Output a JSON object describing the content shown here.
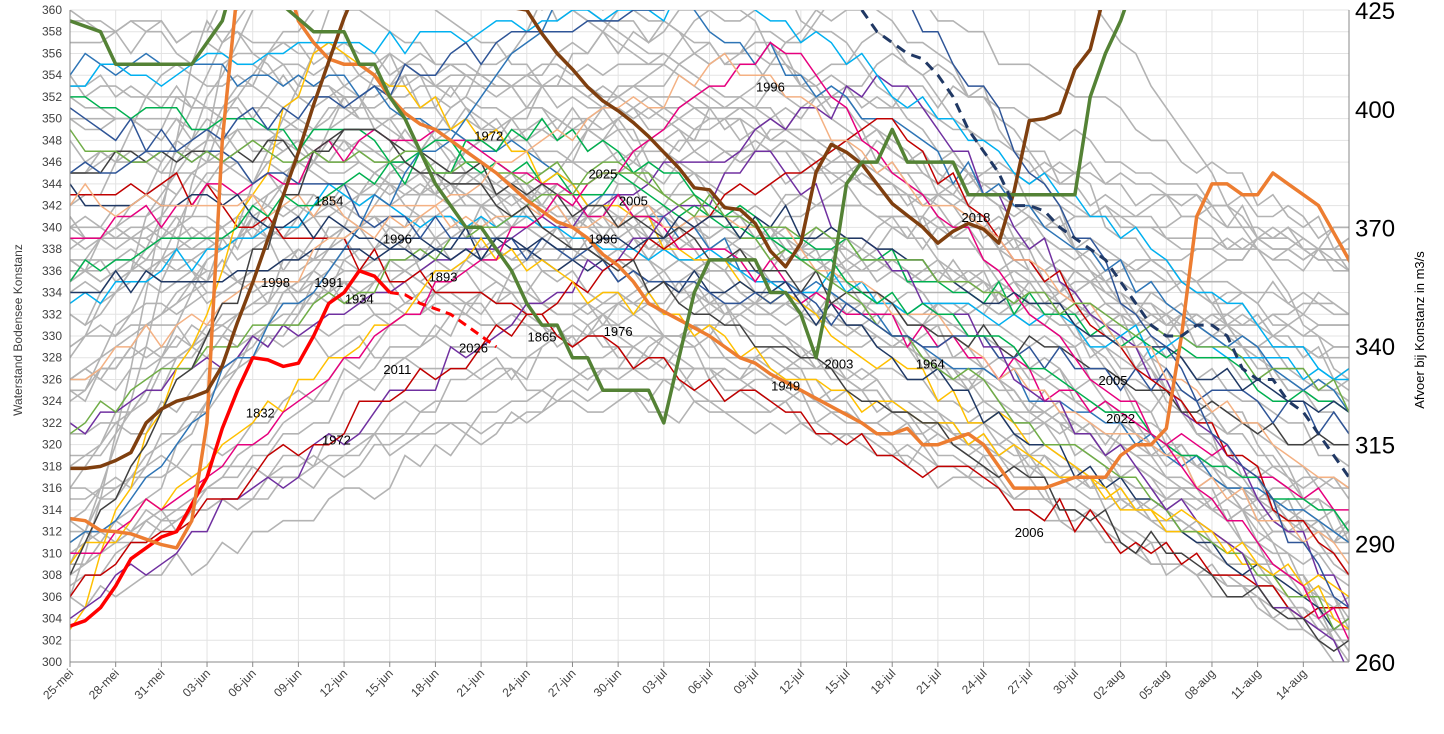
{
  "chart_data": {
    "type": "line",
    "title": "",
    "ylabel": "Waterstand Bodensee Konstanz",
    "y2label": "Afvoer bij Konstanz in m3/s",
    "ylim": [
      300,
      360
    ],
    "y2lim": [
      260,
      425
    ],
    "y_ticks": [
      300,
      302,
      304,
      306,
      308,
      310,
      312,
      314,
      316,
      318,
      320,
      322,
      324,
      326,
      328,
      330,
      332,
      334,
      336,
      338,
      340,
      342,
      344,
      346,
      348,
      350,
      352,
      354,
      356,
      358,
      360
    ],
    "y2_ticks": [
      260,
      290,
      315,
      340,
      370,
      400,
      425
    ],
    "x_range": [
      "25-mei",
      "16-aug"
    ],
    "x_ticks": [
      "25-mei",
      "28-mei",
      "31-mei",
      "03-jun",
      "06-jun",
      "09-jun",
      "12-jun",
      "15-jun",
      "18-jun",
      "21-jun",
      "24-jun",
      "27-jun",
      "30-jun",
      "03-jul",
      "06-jul",
      "09-jul",
      "12-jul",
      "15-jul",
      "18-jul",
      "21-jul",
      "24-jul",
      "27-jul",
      "30-jul",
      "02-aug",
      "05-aug",
      "08-aug",
      "11-aug",
      "14-aug"
    ],
    "grid": true,
    "background_series_color": "#b3b3b3",
    "series": [
      {
        "name": "2026",
        "color": "#ff0000",
        "width": 3.5,
        "values": [
          [
            0,
            303.3
          ],
          [
            1,
            303.8
          ],
          [
            2,
            305
          ],
          [
            3,
            307
          ],
          [
            4,
            309.5
          ],
          [
            5,
            310.5
          ],
          [
            6,
            311.5
          ],
          [
            7,
            312
          ],
          [
            8,
            314.5
          ],
          [
            9,
            317
          ],
          [
            10,
            321.5
          ],
          [
            11,
            325
          ],
          [
            12,
            328
          ],
          [
            13,
            327.8
          ],
          [
            14,
            327.2
          ],
          [
            15,
            327.5
          ],
          [
            16,
            330
          ],
          [
            17,
            333
          ],
          [
            18,
            334
          ],
          [
            19,
            336
          ],
          [
            20,
            335.5
          ],
          [
            21,
            334
          ]
        ]
      },
      {
        "name": "2026",
        "color": "#ff0000",
        "width": 3,
        "dash": "9 6",
        "values": [
          [
            21,
            334
          ],
          [
            22,
            333.8
          ],
          [
            23,
            333
          ],
          [
            24,
            332.5
          ],
          [
            25,
            332
          ],
          [
            26,
            331
          ],
          [
            27,
            330
          ],
          [
            28,
            329
          ]
        ]
      },
      {
        "name": "1976",
        "color": "#ed7d31",
        "width": 3.5,
        "values": [
          [
            0,
            313.2
          ],
          [
            1,
            313
          ],
          [
            2,
            312.1
          ],
          [
            3,
            312
          ],
          [
            4,
            311.8
          ],
          [
            6,
            310.8
          ],
          [
            7,
            310.5
          ],
          [
            8,
            313
          ],
          [
            9,
            322
          ],
          [
            10,
            348
          ],
          [
            11,
            362
          ],
          [
            13,
            366
          ],
          [
            14,
            364
          ],
          [
            15,
            359
          ],
          [
            16,
            357
          ],
          [
            17,
            355.5
          ],
          [
            18,
            355
          ],
          [
            19,
            355
          ],
          [
            20,
            354
          ],
          [
            21,
            352
          ],
          [
            22,
            350.5
          ],
          [
            23,
            349.5
          ],
          [
            24,
            349
          ],
          [
            25,
            348
          ],
          [
            26,
            347
          ],
          [
            28,
            345
          ],
          [
            30,
            342.5
          ],
          [
            31,
            341.5
          ],
          [
            32,
            340.5
          ],
          [
            33,
            340
          ],
          [
            34,
            339
          ],
          [
            35,
            337.5
          ],
          [
            36,
            336.5
          ],
          [
            37,
            335
          ],
          [
            38,
            333
          ],
          [
            40,
            331.5
          ],
          [
            42,
            330
          ],
          [
            44,
            328
          ],
          [
            45,
            327.5
          ],
          [
            46,
            326.5
          ],
          [
            48,
            325
          ],
          [
            50,
            323.5
          ],
          [
            52,
            322
          ],
          [
            53,
            321
          ],
          [
            54,
            321
          ],
          [
            55,
            321.5
          ],
          [
            56,
            320
          ],
          [
            57,
            320
          ],
          [
            58,
            320.5
          ],
          [
            59,
            321
          ],
          [
            60,
            320
          ],
          [
            61,
            318
          ],
          [
            62,
            316
          ],
          [
            63,
            316
          ],
          [
            64,
            316
          ],
          [
            65,
            316.5
          ],
          [
            66,
            317
          ],
          [
            67,
            317
          ],
          [
            68,
            317
          ],
          [
            69,
            319
          ],
          [
            70,
            320
          ],
          [
            71,
            320
          ],
          [
            72,
            321.5
          ],
          [
            73,
            330
          ],
          [
            74,
            341
          ],
          [
            75,
            344
          ],
          [
            76,
            344
          ],
          [
            77,
            343
          ],
          [
            78,
            343
          ],
          [
            79,
            345
          ],
          [
            80,
            344
          ],
          [
            81,
            343
          ],
          [
            82,
            342
          ],
          [
            83,
            339.5
          ],
          [
            84,
            337
          ],
          [
            85,
            334
          ],
          [
            86,
            331.5
          ],
          [
            87,
            329.5
          ],
          [
            88,
            327.5
          ],
          [
            89,
            326.5
          ],
          [
            90,
            325.5
          ],
          [
            91,
            323.5
          ],
          [
            92,
            321.5
          ]
        ]
      },
      {
        "name": "2025",
        "color": "#7f3f0f",
        "width": 3.5,
        "y_axis": "right",
        "values": [
          [
            0,
            309
          ],
          [
            1,
            309
          ],
          [
            2,
            309.5
          ],
          [
            3,
            311
          ],
          [
            4,
            313
          ],
          [
            5,
            320.5
          ],
          [
            6,
            324
          ],
          [
            7,
            326
          ],
          [
            8,
            327
          ],
          [
            9,
            328.5
          ],
          [
            10,
            335
          ],
          [
            11,
            346
          ],
          [
            12,
            356
          ],
          [
            13,
            367
          ],
          [
            14,
            378
          ],
          [
            15,
            389
          ],
          [
            16,
            401
          ],
          [
            17,
            412
          ],
          [
            18,
            423
          ],
          [
            19,
            432
          ],
          [
            30,
            425
          ],
          [
            31,
            419
          ],
          [
            32,
            414
          ],
          [
            33,
            410
          ],
          [
            34,
            405.5
          ],
          [
            35,
            402
          ],
          [
            36,
            399.5
          ],
          [
            37,
            396.5
          ],
          [
            38,
            393
          ],
          [
            39,
            389
          ],
          [
            40,
            385
          ],
          [
            41,
            380
          ],
          [
            42,
            379.5
          ],
          [
            43,
            375
          ],
          [
            44,
            374.5
          ],
          [
            45,
            371
          ],
          [
            46,
            364
          ],
          [
            47,
            360
          ],
          [
            48,
            366
          ],
          [
            49,
            384
          ],
          [
            50,
            391
          ],
          [
            51,
            389
          ],
          [
            52,
            386
          ],
          [
            53,
            381
          ],
          [
            54,
            376
          ],
          [
            55,
            373
          ],
          [
            56,
            370
          ],
          [
            57,
            366
          ],
          [
            58,
            369
          ],
          [
            59,
            371
          ],
          [
            60,
            369.5
          ],
          [
            61,
            366
          ],
          [
            62,
            379
          ],
          [
            63,
            397
          ],
          [
            64,
            397.5
          ],
          [
            65,
            399
          ],
          [
            66,
            410
          ],
          [
            67,
            415
          ],
          [
            68,
            430
          ]
        ]
      },
      {
        "name": "1865",
        "color": "#548235",
        "width": 3.5,
        "values": [
          [
            0,
            359
          ],
          [
            2,
            358
          ],
          [
            3,
            355
          ],
          [
            6,
            355
          ],
          [
            8,
            355
          ],
          [
            10,
            359
          ],
          [
            11,
            364
          ],
          [
            16,
            358
          ],
          [
            18,
            358
          ],
          [
            19,
            355
          ],
          [
            20,
            355
          ],
          [
            21,
            352
          ],
          [
            22,
            350
          ],
          [
            23,
            347
          ],
          [
            24,
            344
          ],
          [
            25,
            342
          ],
          [
            26,
            340
          ],
          [
            27,
            340
          ],
          [
            28,
            338
          ],
          [
            29,
            336
          ],
          [
            30,
            333
          ],
          [
            31,
            331
          ],
          [
            32,
            331
          ],
          [
            33,
            328
          ],
          [
            34,
            328
          ],
          [
            35,
            325
          ],
          [
            37,
            325
          ],
          [
            38,
            325
          ],
          [
            39,
            322
          ],
          [
            40,
            328
          ],
          [
            41,
            334
          ],
          [
            42,
            337
          ],
          [
            44,
            337
          ],
          [
            45,
            337
          ],
          [
            46,
            334
          ],
          [
            47,
            334
          ],
          [
            48,
            332
          ],
          [
            49,
            328
          ],
          [
            50,
            335
          ],
          [
            51,
            344
          ],
          [
            52,
            346
          ],
          [
            53,
            346
          ],
          [
            54,
            349
          ],
          [
            55,
            346
          ],
          [
            57,
            346
          ],
          [
            58,
            346
          ],
          [
            59,
            343
          ],
          [
            63,
            343
          ],
          [
            64,
            343
          ],
          [
            65,
            343
          ],
          [
            66,
            343
          ],
          [
            67,
            352
          ],
          [
            68,
            356
          ],
          [
            69,
            359
          ],
          [
            70,
            363
          ]
        ]
      },
      {
        "name": "2018",
        "color": "#203864",
        "width": 3,
        "dash": "10 7",
        "values": [
          [
            52,
            360
          ],
          [
            53,
            358
          ],
          [
            54,
            357
          ],
          [
            55,
            356
          ],
          [
            56,
            355.5
          ],
          [
            57,
            354
          ],
          [
            58,
            352
          ],
          [
            59,
            349
          ],
          [
            60,
            347
          ],
          [
            61,
            345
          ],
          [
            62,
            342
          ],
          [
            63,
            342
          ],
          [
            64,
            341.5
          ],
          [
            65,
            340
          ],
          [
            66,
            339
          ],
          [
            67,
            338
          ],
          [
            68,
            337
          ],
          [
            69,
            335
          ],
          [
            70,
            333
          ],
          [
            71,
            331
          ],
          [
            72,
            330
          ],
          [
            73,
            330
          ],
          [
            74,
            331
          ],
          [
            75,
            331
          ],
          [
            76,
            330
          ],
          [
            77,
            327
          ],
          [
            78,
            326
          ],
          [
            79,
            326
          ],
          [
            80,
            324
          ],
          [
            81,
            323
          ],
          [
            82,
            321
          ],
          [
            83,
            319
          ],
          [
            84,
            317
          ],
          [
            85,
            317
          ],
          [
            86,
            317
          ]
        ]
      }
    ],
    "line_labels": [
      {
        "text": "1996",
        "x": 46,
        "y": 352.5
      },
      {
        "text": "1972",
        "x": 27.5,
        "y": 348
      },
      {
        "text": "2025",
        "x": 35,
        "y": 344.5
      },
      {
        "text": "1854",
        "x": 17,
        "y": 342
      },
      {
        "text": "2005",
        "x": 37,
        "y": 342
      },
      {
        "text": "1996",
        "x": 21.5,
        "y": 338.5
      },
      {
        "text": "1996",
        "x": 35,
        "y": 338.5
      },
      {
        "text": "2018",
        "x": 59.5,
        "y": 340.5
      },
      {
        "text": "1893",
        "x": 24.5,
        "y": 335
      },
      {
        "text": "1998",
        "x": 13.5,
        "y": 334.5
      },
      {
        "text": "1991",
        "x": 17,
        "y": 334.5
      },
      {
        "text": "1934",
        "x": 19,
        "y": 333
      },
      {
        "text": "2026",
        "x": 26.5,
        "y": 328.5
      },
      {
        "text": "1865",
        "x": 31,
        "y": 329.5
      },
      {
        "text": "1976",
        "x": 36,
        "y": 330
      },
      {
        "text": "2003",
        "x": 50.5,
        "y": 327
      },
      {
        "text": "1964",
        "x": 56.5,
        "y": 327
      },
      {
        "text": "2011",
        "x": 21.5,
        "y": 326.5
      },
      {
        "text": "1949",
        "x": 47,
        "y": 325
      },
      {
        "text": "2005",
        "x": 68.5,
        "y": 325.5
      },
      {
        "text": "1832",
        "x": 12.5,
        "y": 322.5
      },
      {
        "text": "2022",
        "x": 69,
        "y": 322
      },
      {
        "text": "1972",
        "x": 17.5,
        "y": 320
      },
      {
        "text": "2006",
        "x": 63,
        "y": 311.5
      }
    ]
  }
}
